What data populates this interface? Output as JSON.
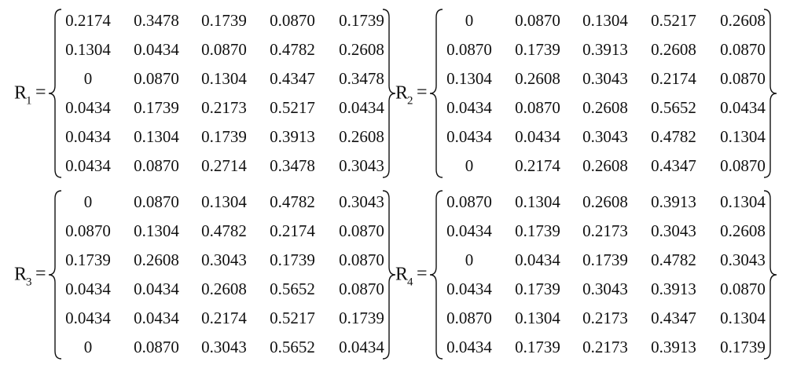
{
  "matrices": [
    {
      "label": "R",
      "subscript": "1",
      "operator": "=",
      "rows": [
        [
          "0.2174",
          "0.3478",
          "0.1739",
          "0.0870",
          "0.1739"
        ],
        [
          "0.1304",
          "0.0434",
          "0.0870",
          "0.4782",
          "0.2608"
        ],
        [
          "0",
          "0.0870",
          "0.1304",
          "0.4347",
          "0.3478"
        ],
        [
          "0.0434",
          "0.1739",
          "0.2173",
          "0.5217",
          "0.0434"
        ],
        [
          "0.0434",
          "0.1304",
          "0.1739",
          "0.3913",
          "0.2608"
        ],
        [
          "0.0434",
          "0.0870",
          "0.2714",
          "0.3478",
          "0.3043"
        ]
      ]
    },
    {
      "label": "R",
      "subscript": "2",
      "operator": "=",
      "rows": [
        [
          "0",
          "0.0870",
          "0.1304",
          "0.5217",
          "0.2608"
        ],
        [
          "0.0870",
          "0.1739",
          "0.3913",
          "0.2608",
          "0.0870"
        ],
        [
          "0.1304",
          "0.2608",
          "0.3043",
          "0.2174",
          "0.0870"
        ],
        [
          "0.0434",
          "0.0870",
          "0.2608",
          "0.5652",
          "0.0434"
        ],
        [
          "0.0434",
          "0.0434",
          "0.3043",
          "0.4782",
          "0.1304"
        ],
        [
          "0",
          "0.2174",
          "0.2608",
          "0.4347",
          "0.0870"
        ]
      ]
    },
    {
      "label": "R",
      "subscript": "3",
      "operator": "=",
      "rows": [
        [
          "0",
          "0.0870",
          "0.1304",
          "0.4782",
          "0.3043"
        ],
        [
          "0.0870",
          "0.1304",
          "0.4782",
          "0.2174",
          "0.0870"
        ],
        [
          "0.1739",
          "0.2608",
          "0.3043",
          "0.1739",
          "0.0870"
        ],
        [
          "0.0434",
          "0.0434",
          "0.2608",
          "0.5652",
          "0.0870"
        ],
        [
          "0.0434",
          "0.0434",
          "0.2174",
          "0.5217",
          "0.1739"
        ],
        [
          "0",
          "0.0870",
          "0.3043",
          "0.5652",
          "0.0434"
        ]
      ]
    },
    {
      "label": "R",
      "subscript": "4",
      "operator": "=",
      "rows": [
        [
          "0.0870",
          "0.1304",
          "0.2608",
          "0.3913",
          "0.1304"
        ],
        [
          "0.0434",
          "0.1739",
          "0.2173",
          "0.3043",
          "0.2608"
        ],
        [
          "0",
          "0.0434",
          "0.1739",
          "0.4782",
          "0.3043"
        ],
        [
          "0.0434",
          "0.1739",
          "0.3043",
          "0.3913",
          "0.0870"
        ],
        [
          "0.0870",
          "0.1304",
          "0.2173",
          "0.4347",
          "0.1304"
        ],
        [
          "0.0434",
          "0.1739",
          "0.2173",
          "0.3913",
          "0.1739"
        ]
      ]
    }
  ]
}
